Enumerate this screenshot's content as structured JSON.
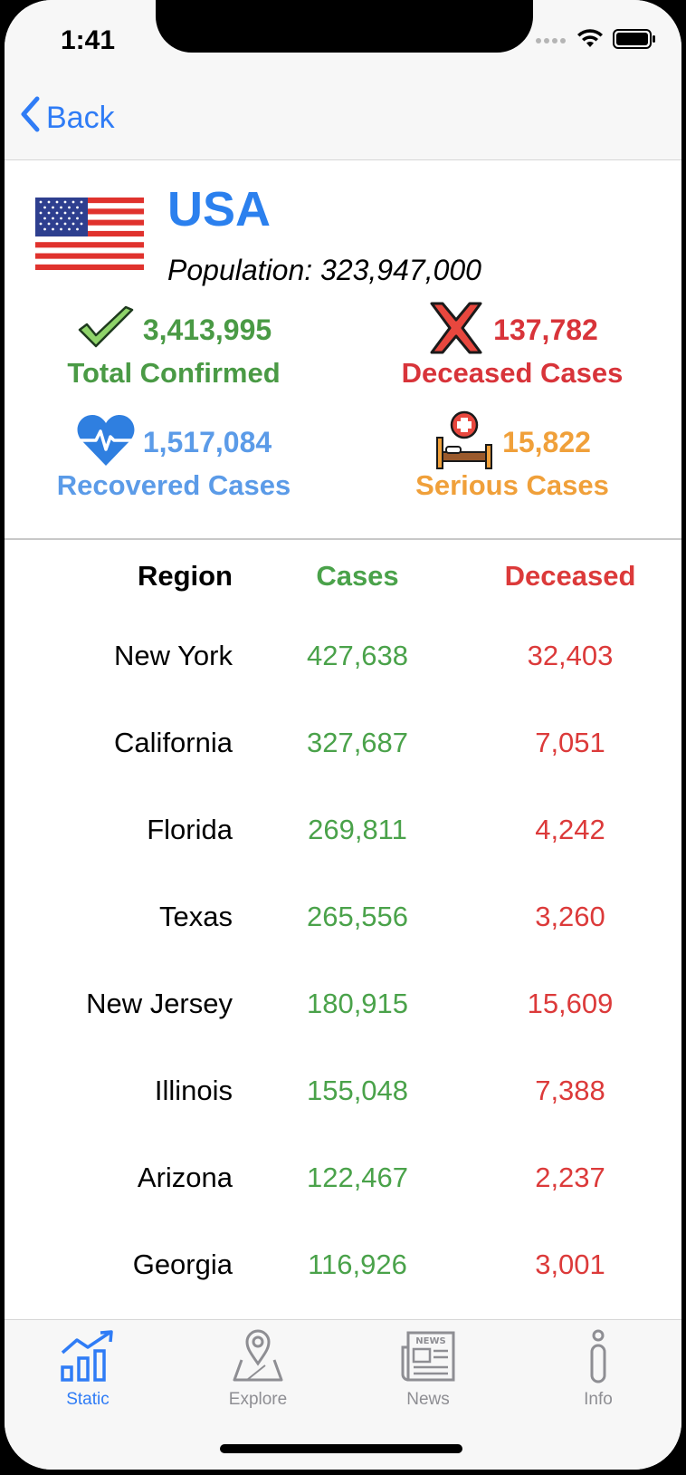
{
  "status": {
    "time": "1:41"
  },
  "nav": {
    "back_label": "Back"
  },
  "country": {
    "name": "USA",
    "population_label": "Population:",
    "population": "323,947,000"
  },
  "stats": {
    "confirmed": {
      "value": "3,413,995",
      "label": "Total Confirmed",
      "color": "#4a9a45"
    },
    "deceased": {
      "value": "137,782",
      "label": "Deceased Cases",
      "color": "#d8343a"
    },
    "recovered": {
      "value": "1,517,084",
      "label": "Recovered Cases",
      "color": "#5b9be8"
    },
    "serious": {
      "value": "15,822",
      "label": "Serious Cases",
      "color": "#f0a03a"
    }
  },
  "table": {
    "headers": {
      "region": "Region",
      "cases": "Cases",
      "deceased": "Deceased"
    },
    "rows": [
      {
        "region": "New York",
        "cases": "427,638",
        "deceased": "32,403"
      },
      {
        "region": "California",
        "cases": "327,687",
        "deceased": "7,051"
      },
      {
        "region": "Florida",
        "cases": "269,811",
        "deceased": "4,242"
      },
      {
        "region": "Texas",
        "cases": "265,556",
        "deceased": "3,260"
      },
      {
        "region": "New Jersey",
        "cases": "180,915",
        "deceased": "15,609"
      },
      {
        "region": "Illinois",
        "cases": "155,048",
        "deceased": "7,388"
      },
      {
        "region": "Arizona",
        "cases": "122,467",
        "deceased": "2,237"
      },
      {
        "region": "Georgia",
        "cases": "116,926",
        "deceased": "3,001"
      }
    ]
  },
  "tabs": [
    {
      "label": "Static",
      "icon": "chart-icon",
      "active": true
    },
    {
      "label": "Explore",
      "icon": "map-pin-icon",
      "active": false
    },
    {
      "label": "News",
      "icon": "newspaper-icon",
      "active": false
    },
    {
      "label": "Info",
      "icon": "info-icon",
      "active": false
    }
  ],
  "colors": {
    "accent": "#2f7cf6",
    "tab_inactive": "#8e8e93",
    "cases_green": "#4aa24a",
    "deceased_red": "#dc3a3a"
  }
}
